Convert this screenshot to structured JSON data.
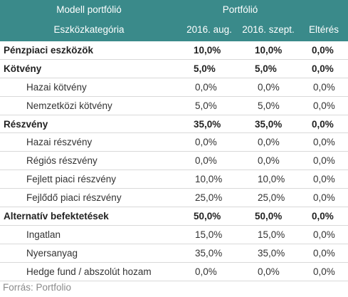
{
  "header": {
    "model": "Modell portfólió",
    "portfolio": "Portfólió",
    "category": "Eszközkategória",
    "aug": "2016. aug.",
    "szept": "2016. szept.",
    "elteres": "Eltérés",
    "bg_color": "#3a8a8a"
  },
  "rows": [
    {
      "type": "main",
      "label": "Pénzpiaci eszközök",
      "aug": "10,0%",
      "szept": "10,0%",
      "elt": "0,0%"
    },
    {
      "type": "main",
      "label": "Kötvény",
      "aug": "5,0%",
      "szept": "5,0%",
      "elt": "0,0%"
    },
    {
      "type": "sub",
      "label": "Hazai kötvény",
      "aug": "0,0%",
      "szept": "0,0%",
      "elt": "0,0%"
    },
    {
      "type": "sub",
      "label": "Nemzetközi kötvény",
      "aug": "5,0%",
      "szept": "5,0%",
      "elt": "0,0%"
    },
    {
      "type": "main",
      "label": "Részvény",
      "aug": "35,0%",
      "szept": "35,0%",
      "elt": "0,0%"
    },
    {
      "type": "sub",
      "label": "Hazai részvény",
      "aug": "0,0%",
      "szept": "0,0%",
      "elt": "0,0%"
    },
    {
      "type": "sub",
      "label": "Régiós részvény",
      "aug": "0,0%",
      "szept": "0,0%",
      "elt": "0,0%"
    },
    {
      "type": "sub",
      "label": "Fejlett piaci részvény",
      "aug": "10,0%",
      "szept": "10,0%",
      "elt": "0,0%"
    },
    {
      "type": "sub",
      "label": "Fejlődő piaci részvény",
      "aug": "25,0%",
      "szept": "25,0%",
      "elt": "0,0%"
    },
    {
      "type": "main",
      "label": "Alternatív befektetések",
      "aug": "50,0%",
      "szept": "50,0%",
      "elt": "0,0%"
    },
    {
      "type": "sub",
      "label": "Ingatlan",
      "aug": "15,0%",
      "szept": "15,0%",
      "elt": "0,0%"
    },
    {
      "type": "sub",
      "label": "Nyersanyag",
      "aug": "35,0%",
      "szept": "35,0%",
      "elt": "0,0%"
    },
    {
      "type": "sub",
      "label": "Hedge fund / abszolút hozam",
      "aug": "0,0%",
      "szept": "0,0%",
      "elt": "0,0%"
    }
  ],
  "footer": {
    "source": "Forrás: Portfolio"
  }
}
